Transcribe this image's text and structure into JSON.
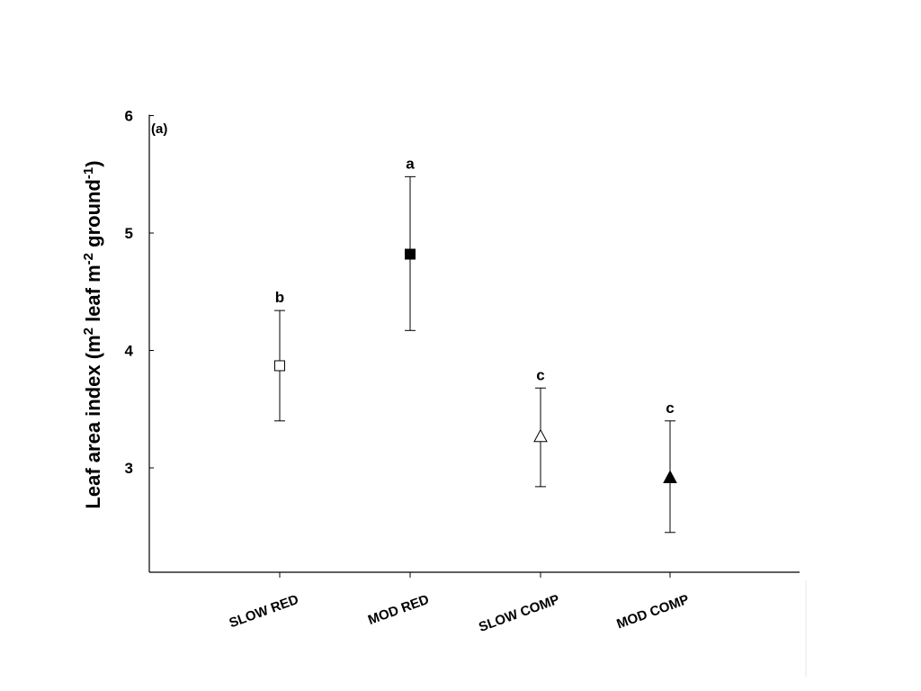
{
  "chart_data": {
    "type": "scatter",
    "panel_label": "(a)",
    "ylabel": {
      "prefix": "Leaf area index (m",
      "sup1": "2",
      "middle": " leaf m",
      "sup2": "-2",
      "suffix": " ground",
      "sup3": "-1",
      "close": ")"
    },
    "ylim": [
      2.1,
      6
    ],
    "yticks": [
      3,
      4,
      5,
      6
    ],
    "y_tick_labels": [
      "3",
      "4",
      "5",
      "6"
    ],
    "categories": [
      "SLOW RED",
      "MOD RED",
      "SLOW COMP",
      "MOD COMP"
    ],
    "points": [
      {
        "category": "SLOW RED",
        "y": 3.87,
        "err_low": 3.4,
        "err_high": 4.34,
        "marker": "square",
        "filled": false,
        "sig": "b"
      },
      {
        "category": "MOD RED",
        "y": 4.82,
        "err_low": 4.17,
        "err_high": 5.48,
        "marker": "square",
        "filled": true,
        "sig": "a"
      },
      {
        "category": "SLOW COMP",
        "y": 3.27,
        "err_low": 2.84,
        "err_high": 3.68,
        "marker": "triangle",
        "filled": false,
        "sig": "c"
      },
      {
        "category": "MOD COMP",
        "y": 2.92,
        "err_low": 2.45,
        "err_high": 3.4,
        "marker": "triangle",
        "filled": true,
        "sig": "c"
      }
    ],
    "grid": false,
    "colors": {
      "axis": "#000000",
      "marker_fill": "#000000",
      "marker_open": "#ffffff"
    }
  }
}
